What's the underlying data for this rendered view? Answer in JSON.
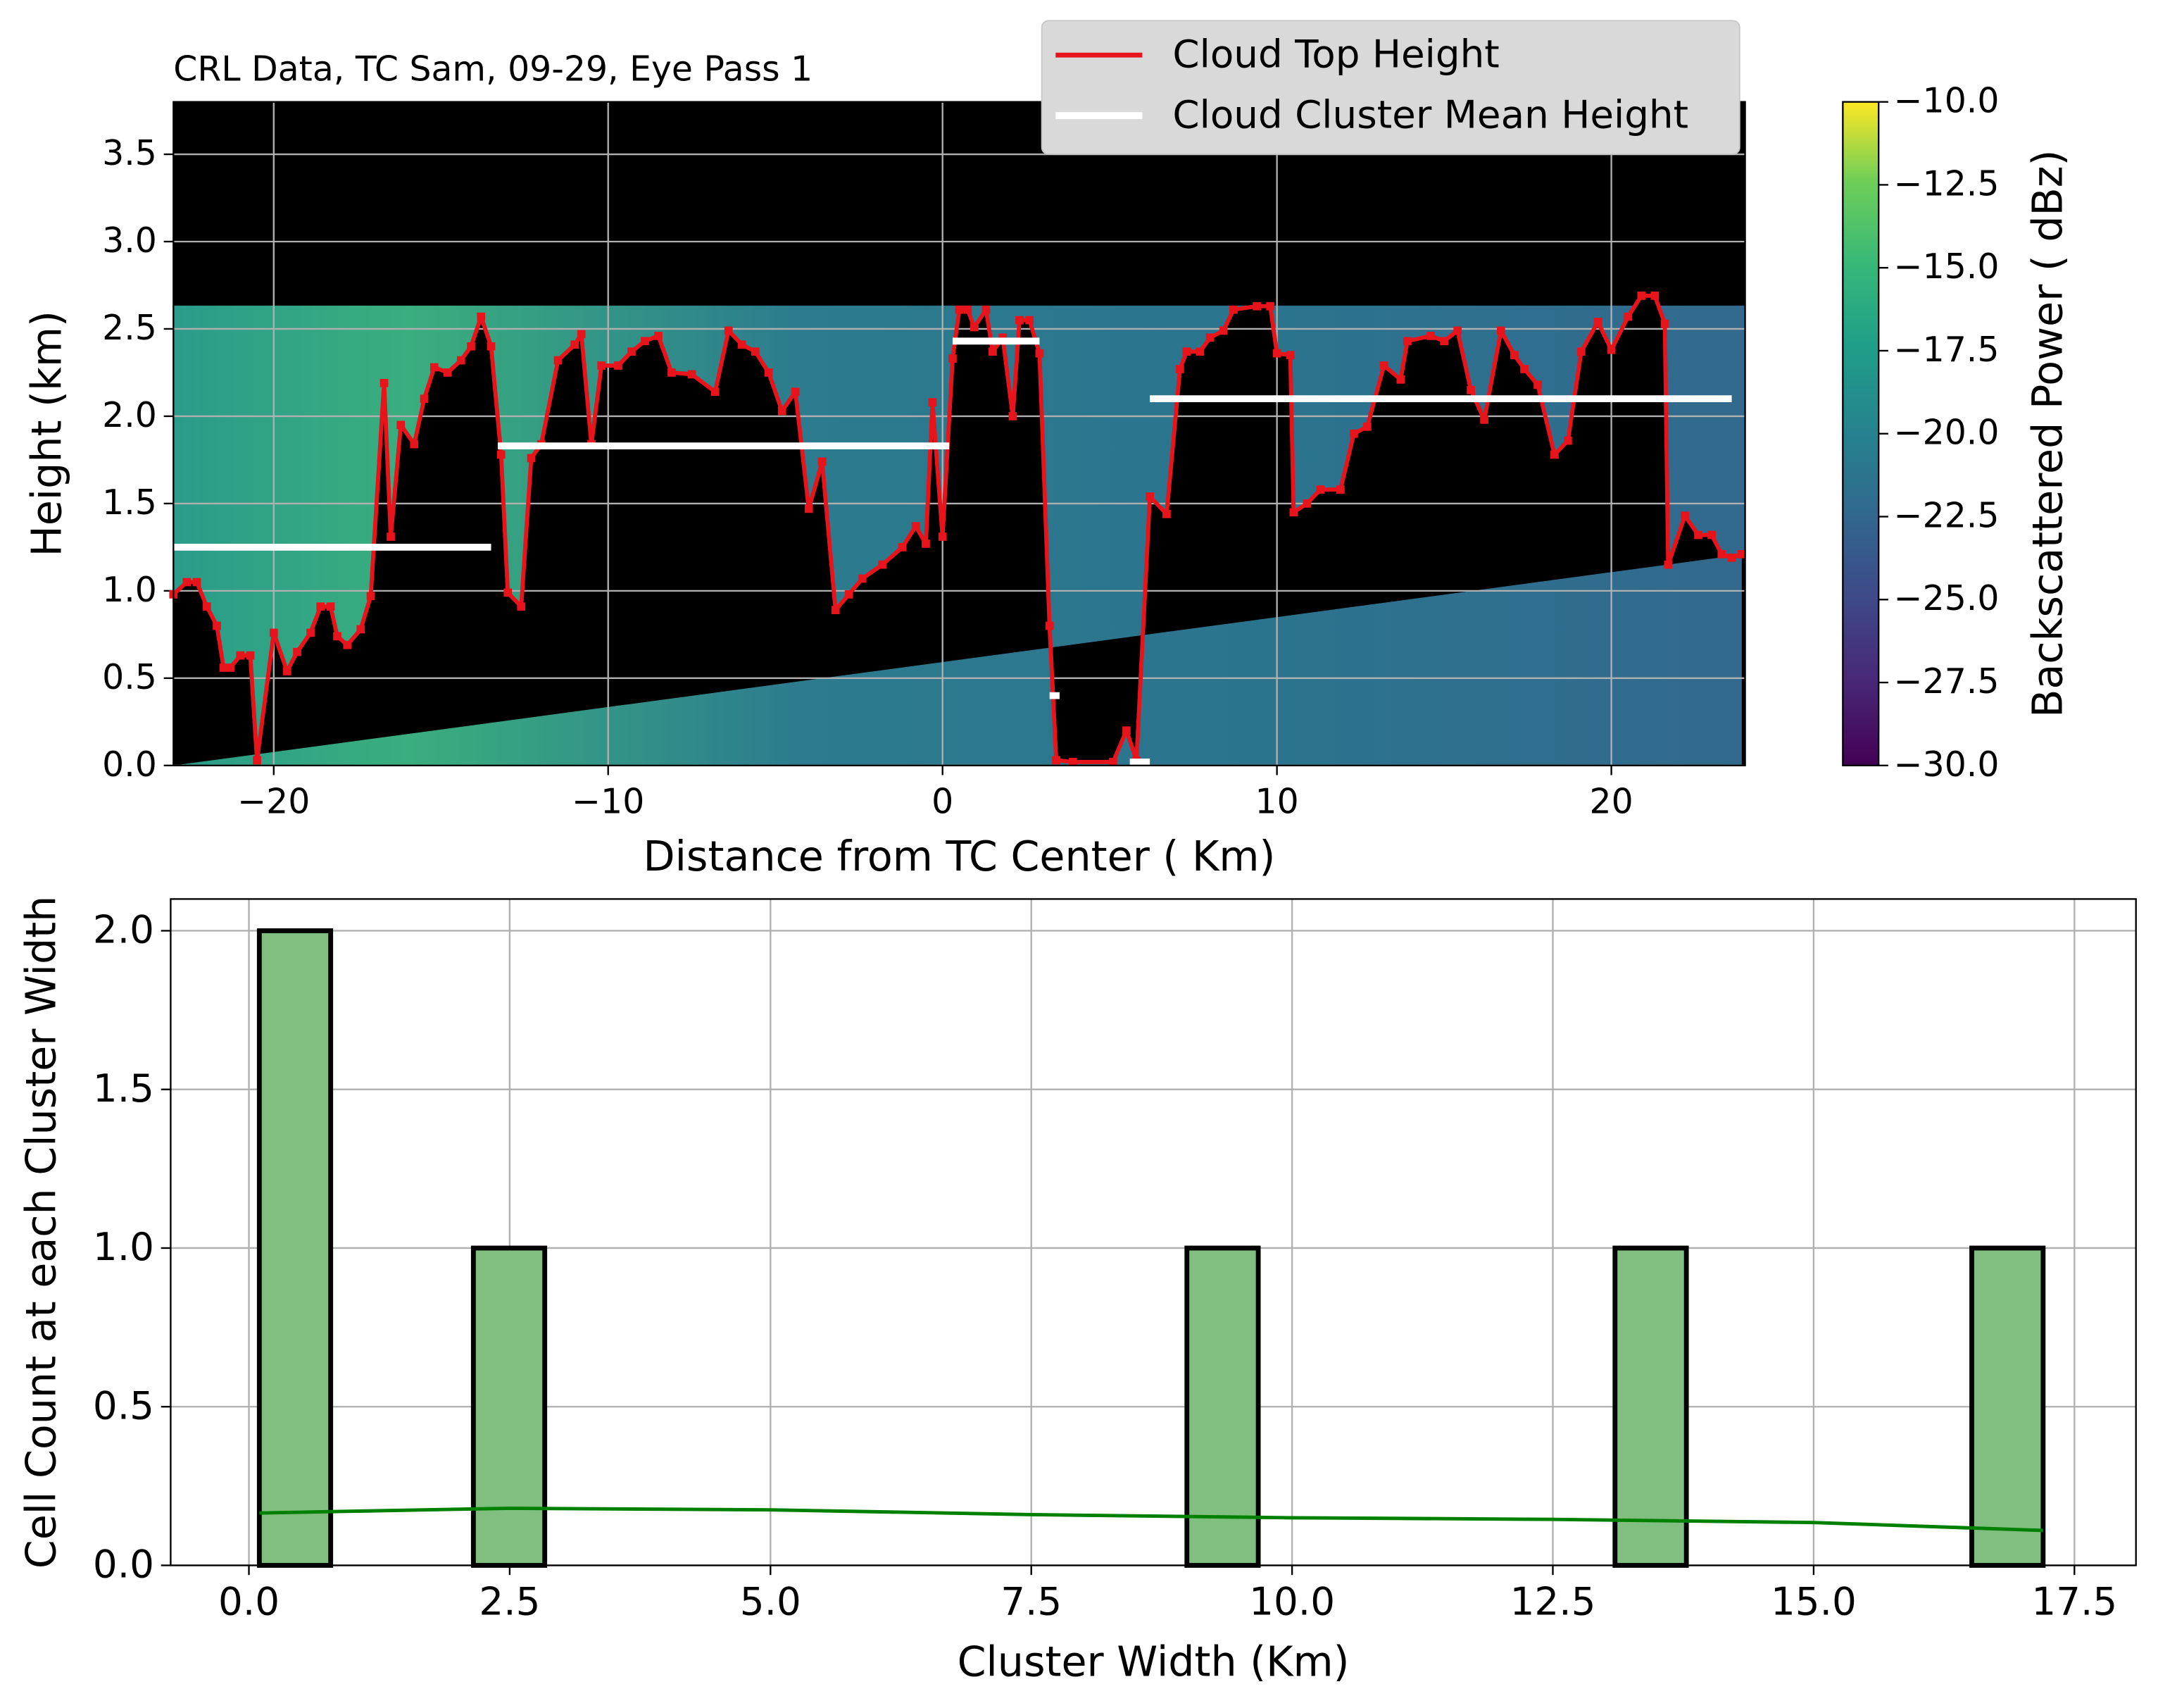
{
  "chart_data": [
    {
      "type": "line",
      "title": "CRL Data, TC Sam, 09-29, Eye Pass 1",
      "xlabel": "Distance from TC Center ( Km)",
      "ylabel": "Height (km)",
      "xlim": [
        -23,
        24
      ],
      "ylim": [
        0,
        3.8
      ],
      "xticks": [
        {
          "value": -20,
          "label": "−20"
        },
        {
          "value": -10,
          "label": "−10"
        },
        0,
        10,
        20
      ],
      "yticks": [
        {
          "value": 0,
          "label": "0.0"
        },
        {
          "value": 0.5,
          "label": "0.5"
        },
        {
          "value": 1,
          "label": "1.0"
        },
        {
          "value": 1.5,
          "label": "1.5"
        },
        {
          "value": 2,
          "label": "2.0"
        },
        {
          "value": 2.5,
          "label": "2.5"
        },
        {
          "value": 3,
          "label": "3.0"
        },
        {
          "value": 3.5,
          "label": "3.5"
        }
      ],
      "grid": true,
      "legend": "upper right",
      "series": [
        {
          "name": "Cloud Top Height",
          "color": "#e8141c",
          "x": [
            -23.0,
            -22.6,
            -22.3,
            -22.0,
            -21.7,
            -21.5,
            -21.3,
            -21.0,
            -20.7,
            -20.5,
            -20.0,
            -19.6,
            -19.3,
            -18.9,
            -18.6,
            -18.3,
            -18.1,
            -17.8,
            -17.4,
            -17.1,
            -16.7,
            -16.5,
            -16.2,
            -15.8,
            -15.5,
            -15.2,
            -14.8,
            -14.4,
            -14.1,
            -13.8,
            -13.5,
            -13.2,
            -13.0,
            -12.6,
            -12.3,
            -12.0,
            -11.5,
            -11.0,
            -10.8,
            -10.5,
            -10.2,
            -9.7,
            -9.3,
            -8.9,
            -8.5,
            -8.1,
            -7.5,
            -6.8,
            -6.4,
            -6.0,
            -5.6,
            -5.2,
            -4.8,
            -4.4,
            -4.0,
            -3.6,
            -3.2,
            -2.8,
            -2.4,
            -1.8,
            -1.2,
            -0.8,
            -0.5,
            -0.3,
            0.0,
            0.3,
            0.5,
            0.75,
            0.95,
            1.3,
            1.5,
            1.8,
            2.1,
            2.3,
            2.6,
            2.9,
            3.2,
            3.4,
            3.9,
            5.1,
            5.5,
            5.8,
            6.2,
            6.7,
            7.1,
            7.3,
            7.7,
            8.0,
            8.4,
            8.7,
            9.4,
            9.8,
            10.0,
            10.4,
            10.5,
            10.9,
            11.3,
            11.9,
            12.3,
            12.7,
            13.2,
            13.7,
            13.9,
            14.6,
            15.0,
            15.4,
            15.8,
            16.2,
            16.7,
            17.1,
            17.4,
            17.8,
            18.3,
            18.7,
            19.1,
            19.6,
            20.0,
            20.5,
            20.9,
            21.3,
            21.6,
            21.7,
            22.2,
            22.6,
            23.0,
            23.3,
            23.6,
            23.9
          ],
          "values": [
            0.98,
            1.05,
            1.05,
            0.91,
            0.8,
            0.56,
            0.56,
            0.63,
            0.63,
            0.03,
            0.76,
            0.54,
            0.65,
            0.76,
            0.91,
            0.91,
            0.74,
            0.69,
            0.78,
            0.97,
            2.19,
            1.31,
            1.95,
            1.84,
            2.1,
            2.28,
            2.25,
            2.32,
            2.4,
            2.57,
            2.4,
            1.78,
            0.99,
            0.91,
            1.76,
            1.84,
            2.32,
            2.41,
            2.47,
            1.84,
            2.29,
            2.29,
            2.37,
            2.43,
            2.46,
            2.25,
            2.24,
            2.14,
            2.49,
            2.41,
            2.37,
            2.25,
            2.03,
            2.14,
            1.47,
            1.74,
            0.89,
            0.98,
            1.07,
            1.15,
            1.25,
            1.37,
            1.27,
            2.08,
            1.31,
            2.33,
            2.61,
            2.61,
            2.51,
            2.61,
            2.37,
            2.45,
            2.0,
            2.55,
            2.55,
            2.36,
            0.8,
            0.03,
            0.02,
            0.02,
            0.2,
            0.03,
            1.54,
            1.44,
            2.27,
            2.37,
            2.37,
            2.45,
            2.49,
            2.61,
            2.63,
            2.63,
            2.36,
            2.35,
            1.45,
            1.5,
            1.58,
            1.58,
            1.9,
            1.94,
            2.29,
            2.21,
            2.43,
            2.46,
            2.43,
            2.49,
            2.15,
            1.98,
            2.49,
            2.35,
            2.27,
            2.18,
            1.78,
            1.86,
            2.37,
            2.54,
            2.38,
            2.57,
            2.69,
            2.69,
            2.53,
            1.15,
            1.43,
            1.32,
            1.32,
            1.21,
            1.19,
            1.21
          ]
        },
        {
          "name": "Cloud Cluster Mean Height",
          "color": "#ffffff",
          "type": "segments",
          "x_start": [
            -23.0,
            -13.3,
            0.3,
            3.2,
            5.6,
            6.2
          ],
          "x_end": [
            -13.5,
            0.2,
            2.9,
            3.5,
            6.2,
            23.6
          ],
          "values": [
            1.25,
            1.83,
            2.43,
            0.4,
            0.02,
            2.1
          ]
        }
      ],
      "colorbar": {
        "label": "Backscattered Power ( dBz)",
        "colormap": "viridis",
        "lim": [
          -30,
          -10
        ],
        "ticks": [
          {
            "value": -10,
            "label": "−10.0"
          },
          {
            "value": -12.5,
            "label": "−12.5"
          },
          {
            "value": -15,
            "label": "−15.0"
          },
          {
            "value": -17.5,
            "label": "−17.5"
          },
          {
            "value": -20,
            "label": "−20.0"
          },
          {
            "value": -22.5,
            "label": "−22.5"
          },
          {
            "value": -25,
            "label": "−25.0"
          },
          {
            "value": -27.5,
            "label": "−27.5"
          },
          {
            "value": -30,
            "label": "−30.0"
          }
        ]
      }
    },
    {
      "type": "histogram",
      "xlabel": "Cluster Width (Km)",
      "ylabel": "Cell Count at each Cluster Width",
      "xlim": [
        -0.75,
        18.09
      ],
      "ylim": [
        0,
        2.1
      ],
      "xticks": [
        {
          "value": 0,
          "label": "0.0"
        },
        2.5,
        {
          "value": 5,
          "label": "5.0"
        },
        7.5,
        {
          "value": 10,
          "label": "10.0"
        },
        12.5,
        {
          "value": 15,
          "label": "15.0"
        },
        17.5
      ],
      "yticks": [
        {
          "value": 0,
          "label": "0.0"
        },
        0.5,
        {
          "value": 1,
          "label": "1.0"
        },
        1.5,
        {
          "value": 2,
          "label": "2.0"
        }
      ],
      "grid": true,
      "color": "#80bf80",
      "edgecolor": "#000000",
      "bins": [
        0.1,
        0.784,
        1.468,
        2.152,
        2.836,
        3.52,
        4.204,
        4.888,
        5.572,
        6.256,
        6.94,
        7.624,
        8.308,
        8.992,
        9.676,
        10.36,
        11.044,
        11.728,
        12.412,
        13.096,
        13.78,
        14.464,
        15.148,
        15.832,
        16.516,
        17.2
      ],
      "counts": [
        2,
        0,
        0,
        1,
        0,
        0,
        0,
        0,
        0,
        0,
        0,
        0,
        0,
        1,
        0,
        0,
        0,
        0,
        0,
        1,
        0,
        0,
        0,
        0,
        1
      ],
      "kde": {
        "color": "#008000",
        "x": [
          0.1,
          2.5,
          5.0,
          7.5,
          10.0,
          12.5,
          15.0,
          17.2
        ],
        "values": [
          0.165,
          0.18,
          0.175,
          0.16,
          0.15,
          0.145,
          0.135,
          0.11
        ]
      }
    }
  ]
}
